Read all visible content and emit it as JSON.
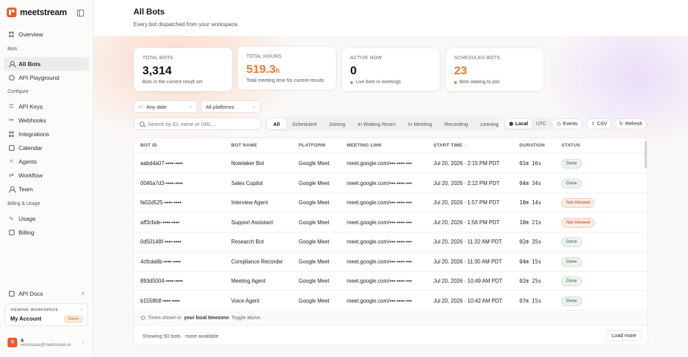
{
  "brand": {
    "name": "meetstream"
  },
  "nav": {
    "overview": "Overview",
    "section_bots": "Bots",
    "all_bots": "All Bots",
    "api_playground": "API Playground",
    "section_configure": "Configure",
    "api_keys": "API Keys",
    "webhooks": "Webhooks",
    "integrations": "Integrations",
    "calendar": "Calendar",
    "agents": "Agents",
    "workflow": "Workflow",
    "team": "Team",
    "section_billing": "Billing & Usage",
    "usage": "Usage",
    "billing": "Billing",
    "api_docs": "API Docs"
  },
  "workspace": {
    "label": "VIEWING WORKSPACE",
    "name": "My Account",
    "role": "Owner"
  },
  "user": {
    "initial": "S",
    "name": "s",
    "email": "workspace@meetstream.ai"
  },
  "header": {
    "title": "All Bots",
    "subtitle": "Every bot dispatched from your workspace."
  },
  "stats": {
    "total_bots": {
      "label": "TOTAL BOTS",
      "value": "3,314",
      "desc": "Bots in the current result set"
    },
    "total_hours": {
      "label": "TOTAL HOURS",
      "value": "519.3",
      "unit": "h",
      "desc": "Total meeting time for current results"
    },
    "active_now": {
      "label": "ACTIVE NOW",
      "value": "0",
      "desc": "Live bots in meetings",
      "dot_color": "#9a9a9a"
    },
    "scheduled": {
      "label": "SCHEDULED BOTS",
      "value": "23",
      "desc": "Bots waiting to join",
      "dot_color": "#f0792a"
    }
  },
  "filters": {
    "date": "Any date",
    "platform": "All platforms",
    "search_placeholder": "Search by ID, name or URL...",
    "tabs": [
      "All",
      "Scheduled",
      "Joining",
      "In Waiting Room",
      "In Meeting",
      "Recording",
      "Leaving"
    ],
    "tz_local": "Local",
    "tz_utc": "UTC",
    "events": "Events",
    "csv": "CSV",
    "refresh": "Refresh"
  },
  "table": {
    "columns": {
      "bot_id": "BOT ID",
      "bot_name": "BOT NAME",
      "platform": "PLATFORM",
      "meeting_link": "MEETING LINK",
      "start_time": "START TIME",
      "duration": "DURATION",
      "status": "STATUS"
    },
    "rows": [
      {
        "id": "aabd4a07-••••-••••",
        "name": "Notetaker Bot",
        "platform": "Google Meet",
        "link": "meet.google.com/•••-••••-•••",
        "start": "Jul 20, 2026 · 2:15 PM PDT",
        "duration": "01m 16s",
        "status": "Done"
      },
      {
        "id": "0046a7d3-••••-••••",
        "name": "Sales Copilot",
        "platform": "Google Meet",
        "link": "meet.google.com/•••-••••-•••",
        "start": "Jul 20, 2026 · 2:12 PM PDT",
        "duration": "04m 34s",
        "status": "Done"
      },
      {
        "id": "fa02d525-••••-••••",
        "name": "Interview Agent",
        "platform": "Google Meet",
        "link": "meet.google.com/•••-••••-•••",
        "start": "Jul 20, 2026 · 1:57 PM PDT",
        "duration": "10m 14s",
        "status": "Not Allowed"
      },
      {
        "id": "aff3cbde-••••-••••",
        "name": "Support Assistant",
        "platform": "Google Meet",
        "link": "meet.google.com/•••-••••-•••",
        "start": "Jul 20, 2026 · 1:56 PM PDT",
        "duration": "10m 21s",
        "status": "Not Allowed"
      },
      {
        "id": "0d50148f-••••-••••",
        "name": "Research Bot",
        "platform": "Google Meet",
        "link": "meet.google.com/•••-••••-•••",
        "start": "Jul 20, 2026 · 11:32 AM PDT",
        "duration": "02m 35s",
        "status": "Done"
      },
      {
        "id": "4cfcda6b-••••-••••",
        "name": "Compliance Recorder",
        "platform": "Google Meet",
        "link": "meet.google.com/•••-••••-•••",
        "start": "Jul 20, 2026 · 11:30 AM PDT",
        "duration": "04m 15s",
        "status": "Done"
      },
      {
        "id": "893d5004-••••-••••",
        "name": "Meeting Agent",
        "platform": "Google Meet",
        "link": "meet.google.com/•••-••••-•••",
        "start": "Jul 20, 2026 · 10:49 AM PDT",
        "duration": "02m 25s",
        "status": "Done"
      },
      {
        "id": "b1558fdf-••••-••••",
        "name": "Voice Agent",
        "platform": "Google Meet",
        "link": "meet.google.com/•••-••••-•••",
        "start": "Jul 20, 2026 · 10:42 AM PDT",
        "duration": "07m 15s",
        "status": "Done"
      }
    ],
    "tz_note_pre": "Times shown in",
    "tz_note_bold": "your local timezone",
    "tz_note_post": ". Toggle above.",
    "footer": "Showing 50 bots · more available",
    "load_more": "Load more"
  },
  "colors": {
    "accent": "#f0592a",
    "accent_number": "#f0792a"
  }
}
